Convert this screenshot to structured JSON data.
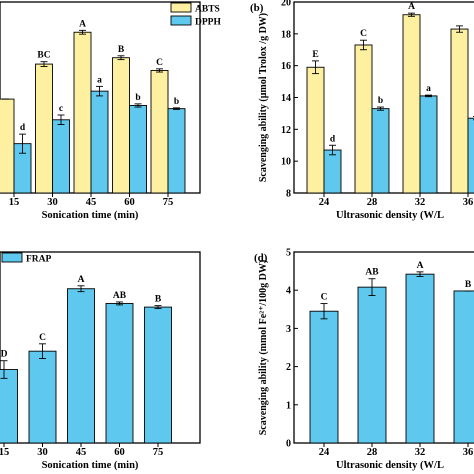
{
  "colors": {
    "abts": "#fdf0a0",
    "dpph": "#5ec8ee",
    "frap": "#5ec8ee"
  },
  "chart_data": [
    {
      "panel": "a",
      "panel_label": "",
      "type": "bar",
      "xlabel": "Sonication time (min)",
      "ylabel": "",
      "categories": [
        "15",
        "30",
        "45",
        "60",
        "75"
      ],
      "ylim": [
        9.5,
        21.5
      ],
      "show_yticks": false,
      "series": [
        {
          "name": "ABTS",
          "color_key": "abts",
          "values": [
            15.4,
            17.6,
            19.6,
            18.0,
            17.2
          ],
          "errors": [
            0.0,
            0.15,
            0.12,
            0.12,
            0.1
          ],
          "labels": [
            "",
            "BC",
            "A",
            "B",
            "C"
          ]
        },
        {
          "name": "DPPH",
          "color_key": "dpph",
          "values": [
            12.6,
            14.1,
            15.9,
            15.0,
            14.8
          ],
          "errors": [
            0.6,
            0.3,
            0.3,
            0.1,
            0.05
          ],
          "labels": [
            "d",
            "c",
            "a",
            "b",
            "b"
          ]
        }
      ],
      "legend": "top-right"
    },
    {
      "panel": "b",
      "panel_label": "(b)",
      "type": "bar",
      "xlabel": "Ultrasonic density (W/L",
      "ylabel": "Scavenging ability (μmol Trolox /g DW)",
      "categories": [
        "24",
        "28",
        "32",
        "36"
      ],
      "ylim": [
        8,
        20
      ],
      "yticks": [
        8,
        10,
        12,
        14,
        16,
        18,
        20
      ],
      "series": [
        {
          "name": "ABTS",
          "color_key": "abts",
          "values": [
            15.9,
            17.3,
            19.2,
            18.3
          ],
          "errors": [
            0.4,
            0.3,
            0.1,
            0.2
          ],
          "labels": [
            "E",
            "C",
            "A",
            ""
          ]
        },
        {
          "name": "DPPH",
          "color_key": "dpph",
          "values": [
            10.7,
            13.3,
            14.1,
            12.7
          ],
          "errors": [
            0.3,
            0.1,
            0.05,
            0.1
          ],
          "labels": [
            "d",
            "b",
            "a",
            ""
          ]
        }
      ]
    },
    {
      "panel": "c",
      "panel_label": "",
      "type": "bar",
      "xlabel": "Sonication time (min)",
      "ylabel": "",
      "categories": [
        "15",
        "30",
        "45",
        "60",
        "75"
      ],
      "ylim": [
        2.3,
        4.9
      ],
      "show_yticks": false,
      "series": [
        {
          "name": "FRAP",
          "color_key": "frap",
          "values": [
            3.3,
            3.55,
            4.4,
            4.2,
            4.15
          ],
          "errors": [
            0.12,
            0.1,
            0.04,
            0.02,
            0.02
          ],
          "labels": [
            "D",
            "C",
            "A",
            "AB",
            "B"
          ]
        }
      ],
      "legend": "top-left"
    },
    {
      "panel": "d",
      "panel_label": "(d)",
      "type": "bar",
      "xlabel": "Ultrasonic density (W/L",
      "ylabel": "Scavenging ability (mmol Fe²⁺/100g DW)",
      "categories": [
        "24",
        "28",
        "32",
        "36"
      ],
      "ylim": [
        0,
        5
      ],
      "yticks": [
        0,
        1,
        2,
        3,
        4,
        5
      ],
      "series": [
        {
          "name": "FRAP",
          "color_key": "frap",
          "values": [
            3.45,
            4.08,
            4.42,
            3.98
          ],
          "errors": [
            0.2,
            0.22,
            0.06,
            0.0
          ],
          "labels": [
            "C",
            "AB",
            "A",
            "B"
          ]
        }
      ]
    }
  ]
}
